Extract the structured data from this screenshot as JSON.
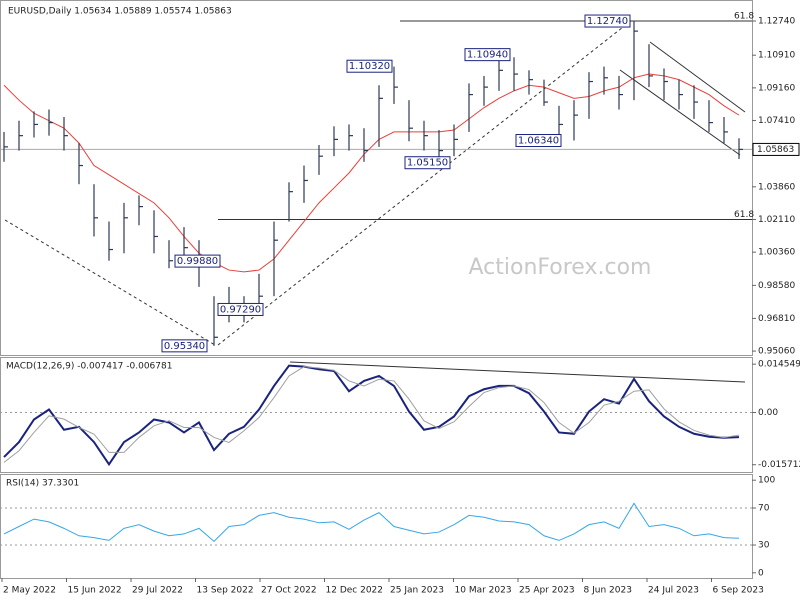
{
  "chart_data": [
    {
      "type": "ohlc",
      "title": "EURUSD,Daily 1.05634 1.05889 1.05574 1.05863",
      "color": "#2b3856",
      "high": [
        1.068,
        1.074,
        1.079,
        1.08,
        1.076,
        1.062,
        1.04,
        1.02,
        1.03,
        1.034,
        1.026,
        1.01,
        1.017,
        1.01,
        0.98,
        0.985,
        0.98,
        0.992,
        1.02,
        1.041,
        1.05,
        1.061,
        1.071,
        1.072,
        1.07,
        1.093,
        1.103,
        1.085,
        1.074,
        1.069,
        1.072,
        1.094,
        1.098,
        1.109,
        1.108,
        1.101,
        1.096,
        1.082,
        1.085,
        1.1,
        1.103,
        1.098,
        1.1274,
        1.115,
        1.102,
        1.096,
        1.093,
        1.085,
        1.076,
        1.0646
      ],
      "low": [
        1.052,
        1.058,
        1.065,
        1.066,
        1.058,
        1.04,
        1.012,
        0.999,
        1.003,
        1.018,
        1.003,
        0.995,
        0.996,
        0.985,
        0.9534,
        0.966,
        0.966,
        0.973,
        0.98,
        1.02,
        1.03,
        1.045,
        1.055,
        1.058,
        1.052,
        1.06,
        1.083,
        1.063,
        1.058,
        1.0515,
        1.055,
        1.068,
        1.082,
        1.09,
        1.09,
        1.088,
        1.082,
        1.066,
        1.0634,
        1.075,
        1.088,
        1.08,
        1.085,
        1.092,
        1.085,
        1.08,
        1.075,
        1.068,
        1.062,
        1.0535
      ],
      "close": [
        1.06,
        1.066,
        1.072,
        1.073,
        1.066,
        1.05,
        1.022,
        1.005,
        1.022,
        1.028,
        1.012,
        0.999,
        1.006,
        0.997,
        0.958,
        0.976,
        0.97,
        0.98,
        1.01,
        1.036,
        1.042,
        1.055,
        1.064,
        1.066,
        1.058,
        1.086,
        1.092,
        1.07,
        1.066,
        1.058,
        1.064,
        1.088,
        1.092,
        1.101,
        1.099,
        1.096,
        1.084,
        1.072,
        1.077,
        1.095,
        1.097,
        1.088,
        1.122,
        1.098,
        1.095,
        1.088,
        1.084,
        1.073,
        1.068,
        1.05863
      ],
      "overlays": [
        {
          "color": "#e8403a",
          "values": [
            1.093,
            1.085,
            1.078,
            1.074,
            1.07,
            1.062,
            1.05,
            1.045,
            1.04,
            1.035,
            1.03,
            1.022,
            1.012,
            1.003,
            0.998,
            0.994,
            0.993,
            0.994,
            1.0,
            1.01,
            1.02,
            1.03,
            1.038,
            1.046,
            1.056,
            1.064,
            1.068,
            1.068,
            1.068,
            1.068,
            1.069,
            1.075,
            1.081,
            1.086,
            1.09,
            1.093,
            1.092,
            1.089,
            1.086,
            1.087,
            1.09,
            1.092,
            1.097,
            1.099,
            1.098,
            1.096,
            1.092,
            1.088,
            1.082,
            1.077
          ]
        }
      ],
      "ylim": [
        0.9485,
        1.1376
      ],
      "yticks": [
        {
          "value": 1.1274,
          "label": "1.12740"
        },
        {
          "value": 1.1091,
          "label": "1.10910"
        },
        {
          "value": 1.0916,
          "label": "1.09160"
        },
        {
          "value": 1.0741,
          "label": "1.07410"
        },
        {
          "value": 1.0386,
          "label": "1.03860"
        },
        {
          "value": 1.0211,
          "label": "1.02110"
        },
        {
          "value": 1.0036,
          "label": "1.00360"
        },
        {
          "value": 0.9858,
          "label": "0.98580"
        },
        {
          "value": 0.9681,
          "label": "0.96810"
        },
        {
          "value": 0.9506,
          "label": "0.95060"
        }
      ],
      "last_price": {
        "value": 1.05863,
        "label": "1.05863"
      },
      "annotations": [
        {
          "label": "1.12740",
          "value": 1.1274
        },
        {
          "label": "1.10320",
          "value": 1.1032
        },
        {
          "label": "1.10940",
          "value": 1.1094
        },
        {
          "label": "1.06340",
          "value": 1.0634
        },
        {
          "label": "1.05150",
          "value": 1.0515
        },
        {
          "label": "0.99880",
          "value": 0.9988
        },
        {
          "label": "0.97290",
          "value": 0.9729
        },
        {
          "label": "0.95340",
          "value": 0.9534
        }
      ],
      "fib_levels": [
        {
          "label": "61.8",
          "value": 1.1274
        },
        {
          "label": "61.8",
          "value": 1.0211
        }
      ],
      "watermark": "ActionForex.com"
    },
    {
      "type": "line",
      "title": "MACD(12,26,9) -0.007417 -0.006781",
      "series": [
        {
          "color": "#1a237e",
          "width": 2,
          "values": [
            -0.0134,
            -0.0089,
            -0.0021,
            0.0009,
            -0.0052,
            -0.0043,
            -0.0089,
            -0.0156,
            -0.0089,
            -0.006,
            -0.0021,
            -0.003,
            -0.006,
            -0.003,
            -0.0113,
            -0.0064,
            -0.0043,
            0.0009,
            0.008,
            0.0141,
            0.0138,
            0.013,
            0.0125,
            0.0064,
            0.0095,
            0.011,
            0.008,
            0.0003,
            -0.0052,
            -0.0043,
            -0.0012,
            0.0049,
            0.007,
            0.008,
            0.008,
            0.0058,
            0.0003,
            -0.006,
            -0.0064,
            0.0003,
            0.004,
            0.0027,
            0.0101,
            0.0034,
            -0.0012,
            -0.0043,
            -0.0064,
            -0.0073,
            -0.0076,
            -0.0074
          ]
        },
        {
          "color": "#a0a0a0",
          "width": 1,
          "values": [
            -0.015,
            -0.0115,
            -0.006,
            -0.001,
            -0.002,
            -0.0045,
            -0.0065,
            -0.012,
            -0.012,
            -0.0075,
            -0.004,
            -0.0025,
            -0.0045,
            -0.0045,
            -0.0075,
            -0.009,
            -0.0055,
            -0.0015,
            0.0045,
            0.011,
            0.0138,
            0.0134,
            0.0127,
            0.0095,
            0.008,
            0.01,
            0.0095,
            0.004,
            -0.0025,
            -0.0048,
            -0.0028,
            0.0018,
            0.006,
            0.0075,
            0.008,
            0.0069,
            0.003,
            -0.003,
            -0.0062,
            -0.003,
            0.0022,
            0.0034,
            0.0064,
            0.0068,
            0.0011,
            -0.0028,
            -0.0054,
            -0.0068,
            -0.0075,
            -0.0068
          ]
        }
      ],
      "ylim": [
        -0.0179,
        0.0167
      ],
      "yticks": [
        0.014549,
        {
          "value": 0,
          "label": "0.00"
        },
        -0.015712
      ],
      "levels": [
        0
      ]
    },
    {
      "type": "line",
      "title": "RSI(14) 37.3301",
      "series": [
        {
          "color": "#35a7e8",
          "width": 1,
          "values": [
            42,
            50,
            58,
            55,
            48,
            40,
            38,
            35,
            48,
            52,
            45,
            40,
            42,
            48,
            34,
            50,
            52,
            62,
            65,
            60,
            58,
            54,
            55,
            47,
            57,
            65,
            50,
            46,
            42,
            44,
            52,
            62,
            60,
            56,
            55,
            52,
            40,
            35,
            42,
            52,
            55,
            48,
            75,
            50,
            52,
            48,
            40,
            42,
            38,
            37.3301
          ]
        }
      ],
      "ylim": [
        -5.6,
        106.7
      ],
      "yticks": [
        100,
        70,
        30,
        0
      ],
      "levels": [
        70,
        30
      ],
      "x_labels": [
        "2 May 2022",
        "15 Jun 2022",
        "29 Jul 2022",
        "13 Sep 2022",
        "27 Oct 2022",
        "12 Dec 2022",
        "25 Jan 2023",
        "10 Mar 2023",
        "25 Apr 2023",
        "8 Jun 2023",
        "24 Jul 2023",
        "6 Sep 2023"
      ]
    }
  ]
}
